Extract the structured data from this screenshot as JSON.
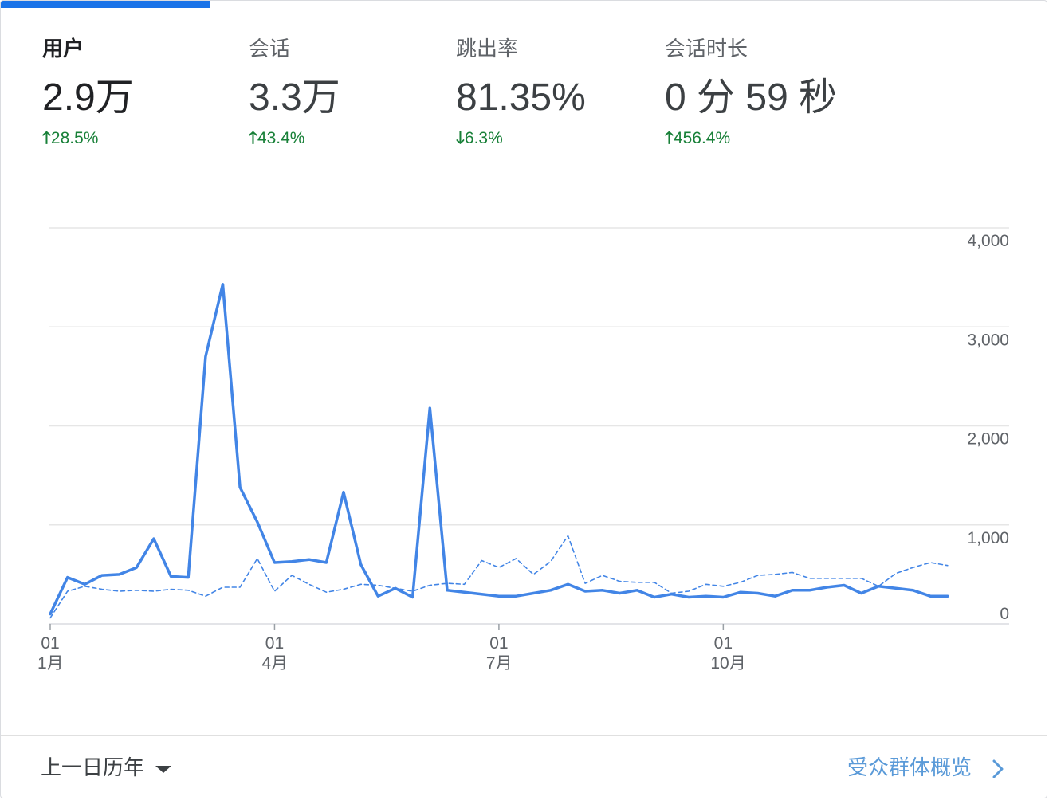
{
  "metrics": [
    {
      "label": "用户",
      "value": "2.9万",
      "delta": "28.5%",
      "direction": "up",
      "active": true
    },
    {
      "label": "会话",
      "value": "3.3万",
      "delta": "43.4%",
      "direction": "up",
      "active": false
    },
    {
      "label": "跳出率",
      "value": "81.35%",
      "delta": "6.3%",
      "direction": "down",
      "active": false
    },
    {
      "label": "会话时长",
      "value": "0 分 59 秒",
      "delta": "456.4%",
      "direction": "up",
      "active": false
    }
  ],
  "footer": {
    "range_label": "上一日历年",
    "overview_link": "受众群体概览"
  },
  "colors": {
    "accent": "#1a73e8",
    "series": "#4285e6",
    "positive": "#188038",
    "link": "#5a9ad8"
  },
  "chart_data": {
    "type": "line",
    "y_ticks": [
      "4,000",
      "3,000",
      "2,000",
      "1,000",
      "0"
    ],
    "x_ticks": [
      {
        "day": "01",
        "month": "1月",
        "week": 0
      },
      {
        "day": "01",
        "month": "4月",
        "week": 13
      },
      {
        "day": "01",
        "month": "7月",
        "week": 26
      },
      {
        "day": "01",
        "month": "10月",
        "week": 39
      }
    ],
    "ylim": [
      0,
      4000
    ],
    "grid": true,
    "series": [
      {
        "style": "solid",
        "values": [
          100,
          470,
          400,
          490,
          500,
          570,
          860,
          480,
          470,
          2700,
          3430,
          1380,
          1030,
          620,
          630,
          650,
          620,
          1330,
          600,
          280,
          360,
          270,
          2180,
          340,
          320,
          300,
          280,
          280,
          310,
          340,
          400,
          330,
          340,
          310,
          340,
          270,
          300,
          270,
          280,
          270,
          320,
          310,
          280,
          340,
          340,
          370,
          390,
          310,
          380,
          360,
          340,
          280,
          280
        ]
      },
      {
        "style": "dashed",
        "values": [
          60,
          330,
          380,
          350,
          330,
          340,
          330,
          350,
          340,
          280,
          370,
          370,
          660,
          330,
          490,
          400,
          320,
          350,
          400,
          390,
          360,
          330,
          390,
          410,
          400,
          640,
          570,
          660,
          500,
          630,
          890,
          410,
          490,
          430,
          420,
          420,
          310,
          330,
          400,
          380,
          420,
          490,
          500,
          520,
          460,
          460,
          460,
          460,
          380,
          510,
          570,
          620,
          590
        ]
      }
    ]
  }
}
